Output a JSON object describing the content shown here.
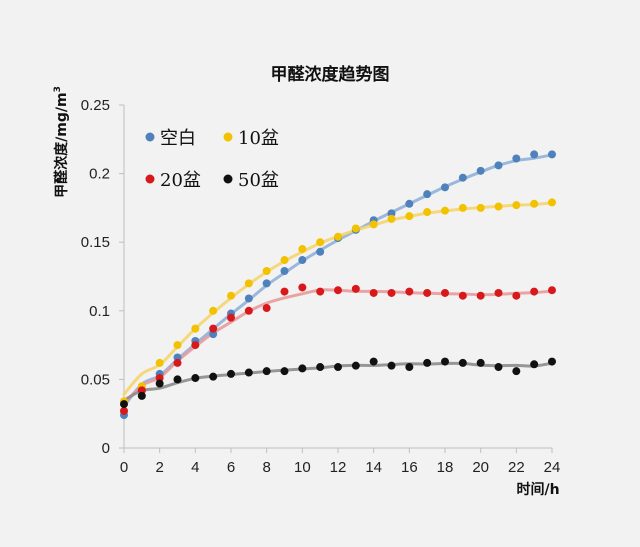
{
  "chart_data": {
    "type": "scatter",
    "title": "甲醛浓度趋势图",
    "xlabel": "时间/h",
    "ylabel": "甲醛浓度/mg/m",
    "ylabel_superscript": "3",
    "xlim": [
      0,
      24
    ],
    "ylim": [
      0,
      0.25
    ],
    "x_ticks": [
      "0",
      "2",
      "4",
      "6",
      "8",
      "10",
      "12",
      "14",
      "16",
      "18",
      "20",
      "22",
      "24"
    ],
    "y_ticks": [
      "0",
      "0.05",
      "0.1",
      "0.15",
      "0.2",
      "0.25"
    ],
    "grid": false,
    "legend_position": "top-left",
    "x": [
      0,
      1,
      2,
      3,
      4,
      5,
      6,
      7,
      8,
      9,
      10,
      11,
      12,
      13,
      14,
      15,
      16,
      17,
      18,
      19,
      20,
      21,
      22,
      23,
      24
    ],
    "series": [
      {
        "name": "空白",
        "color": "#4f81bd",
        "line_color": "#8fb1d9",
        "values": [
          0.024,
          0.042,
          0.054,
          0.066,
          0.078,
          0.083,
          0.098,
          0.109,
          0.12,
          0.129,
          0.137,
          0.143,
          0.153,
          0.159,
          0.166,
          0.171,
          0.178,
          0.185,
          0.19,
          0.197,
          0.202,
          0.206,
          0.211,
          0.214,
          0.214
        ]
      },
      {
        "name": "10盆",
        "color": "#f2c200",
        "line_color": "#f5d56e",
        "values": [
          0.034,
          0.045,
          0.062,
          0.075,
          0.087,
          0.1,
          0.111,
          0.12,
          0.129,
          0.137,
          0.145,
          0.15,
          0.154,
          0.16,
          0.163,
          0.167,
          0.169,
          0.172,
          0.173,
          0.175,
          0.175,
          0.176,
          0.177,
          0.178,
          0.179
        ]
      },
      {
        "name": "20盆",
        "color": "#d7191c",
        "line_color": "#e89a9a",
        "values": [
          0.027,
          0.042,
          0.051,
          0.062,
          0.075,
          0.087,
          0.095,
          0.1,
          0.102,
          0.114,
          0.117,
          0.114,
          0.115,
          0.116,
          0.113,
          0.113,
          0.114,
          0.113,
          0.113,
          0.111,
          0.111,
          0.113,
          0.111,
          0.114,
          0.115
        ]
      },
      {
        "name": "50盆",
        "color": "#111111",
        "line_color": "#8c8c8c",
        "values": [
          0.032,
          0.038,
          0.047,
          0.05,
          0.051,
          0.052,
          0.054,
          0.055,
          0.056,
          0.056,
          0.058,
          0.059,
          0.059,
          0.06,
          0.063,
          0.06,
          0.059,
          0.062,
          0.063,
          0.062,
          0.062,
          0.059,
          0.056,
          0.061,
          0.063
        ]
      }
    ]
  }
}
